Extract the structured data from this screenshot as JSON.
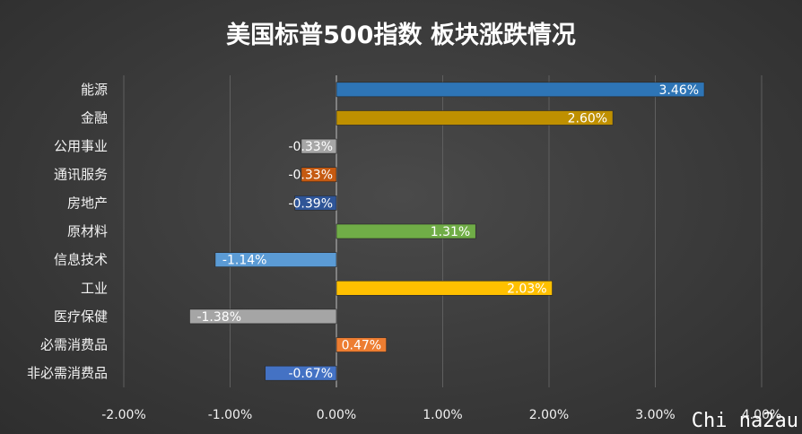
{
  "chart_data": {
    "type": "bar",
    "orientation": "horizontal",
    "title": "美国标普500指数 板块涨跌情况",
    "xlabel": "",
    "ylabel": "",
    "categories": [
      "能源",
      "金融",
      "公用事业",
      "通讯服务",
      "房地产",
      "原材料",
      "信息技术",
      "工业",
      "医疗保健",
      "必需消费品",
      "非必需消费品"
    ],
    "values": [
      3.46,
      2.6,
      -0.33,
      -0.33,
      -0.39,
      1.31,
      -1.14,
      2.03,
      -1.38,
      0.47,
      -0.67
    ],
    "value_labels": [
      "3.46%",
      "2.60%",
      "-0.33%",
      "-0.33%",
      "-0.39%",
      "1.31%",
      "-1.14%",
      "2.03%",
      "-1.38%",
      "0.47%",
      "-0.67%"
    ],
    "colors": [
      "#2e75b6",
      "#bf9000",
      "#a6a6a6",
      "#c55a11",
      "#2f5597",
      "#70ad47",
      "#5b9bd5",
      "#ffc000",
      "#a5a5a5",
      "#ed7d31",
      "#4472c4"
    ],
    "xlim": [
      -2.0,
      4.0
    ],
    "xticks": [
      -2,
      -1,
      0,
      1,
      2,
      3,
      4
    ],
    "xtick_labels": [
      "-2.00%",
      "-1.00%",
      "0.00%",
      "1.00%",
      "2.00%",
      "3.00%",
      "4.00%"
    ],
    "grid": true,
    "legend": "none"
  },
  "watermark": "Chi na2au"
}
